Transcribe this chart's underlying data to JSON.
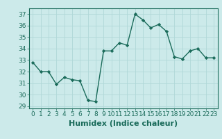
{
  "x": [
    0,
    1,
    2,
    3,
    4,
    5,
    6,
    7,
    8,
    9,
    10,
    11,
    12,
    13,
    14,
    15,
    16,
    17,
    18,
    19,
    20,
    21,
    22,
    23
  ],
  "y": [
    32.8,
    32.0,
    32.0,
    30.9,
    31.5,
    31.3,
    31.2,
    29.5,
    29.4,
    33.8,
    33.8,
    34.5,
    34.3,
    37.0,
    36.5,
    35.8,
    36.1,
    35.5,
    33.3,
    33.1,
    33.8,
    34.0,
    33.2,
    33.2
  ],
  "line_color": "#1a6b5a",
  "marker": "D",
  "marker_size": 2.2,
  "bg_color": "#cceaea",
  "grid_color": "#b0d8d8",
  "xlabel": "Humidex (Indice chaleur)",
  "ylabel_ticks": [
    29,
    30,
    31,
    32,
    33,
    34,
    35,
    36,
    37
  ],
  "xlim": [
    -0.5,
    23.5
  ],
  "ylim": [
    28.8,
    37.5
  ],
  "xtick_labels": [
    "0",
    "1",
    "2",
    "3",
    "4",
    "5",
    "6",
    "7",
    "8",
    "9",
    "10",
    "11",
    "12",
    "13",
    "14",
    "15",
    "16",
    "17",
    "18",
    "19",
    "20",
    "21",
    "22",
    "23"
  ],
  "tick_fontsize": 6.5,
  "xlabel_fontsize": 8.0,
  "linewidth": 1.0
}
